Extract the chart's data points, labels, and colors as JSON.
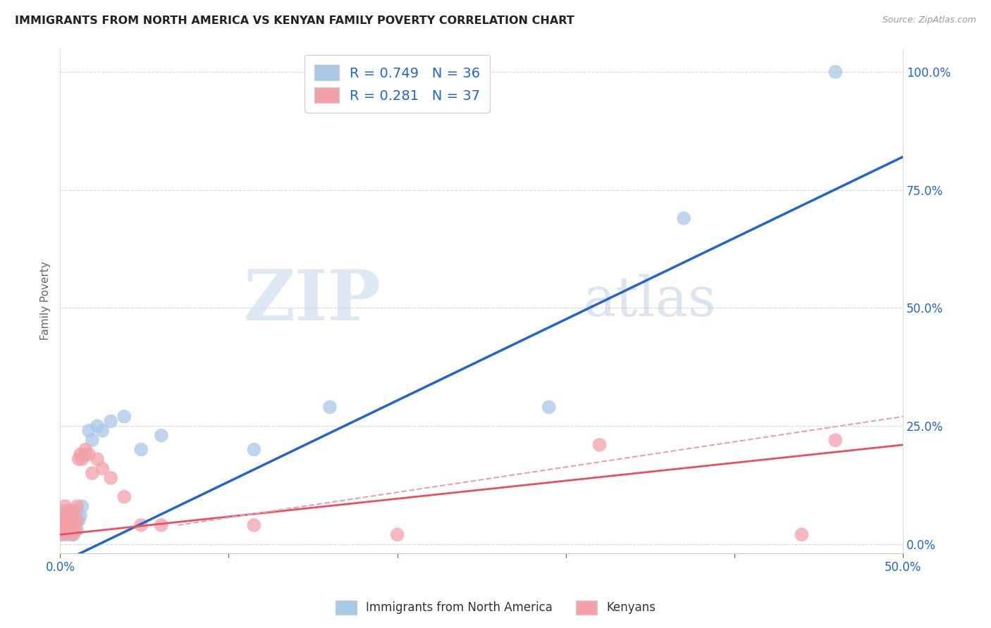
{
  "title": "IMMIGRANTS FROM NORTH AMERICA VS KENYAN FAMILY POVERTY CORRELATION CHART",
  "source": "Source: ZipAtlas.com",
  "ylabel": "Family Poverty",
  "xlim": [
    0.0,
    0.5
  ],
  "ylim": [
    0.0,
    1.05
  ],
  "x_ticks": [
    0.0,
    0.1,
    0.2,
    0.3,
    0.4,
    0.5
  ],
  "x_tick_labels": [
    "0.0%",
    "",
    "",
    "",
    "",
    "50.0%"
  ],
  "y_tick_labels_right": [
    "0.0%",
    "25.0%",
    "50.0%",
    "75.0%",
    "100.0%"
  ],
  "y_ticks_right": [
    0.0,
    0.25,
    0.5,
    0.75,
    1.0
  ],
  "R_blue": 0.749,
  "N_blue": 36,
  "R_pink": 0.281,
  "N_pink": 37,
  "blue_color": "#a8c8e8",
  "pink_color": "#f4a0a8",
  "blue_line_color": "#2266cc",
  "pink_line_color": "#e85060",
  "pink_line_dash_color": "#e8a0b0",
  "watermark_zip": "ZIP",
  "watermark_atlas": "atlas",
  "legend_label_blue": "Immigrants from North America",
  "legend_label_pink": "Kenyans",
  "blue_scatter_x": [
    0.001,
    0.002,
    0.002,
    0.003,
    0.003,
    0.003,
    0.004,
    0.004,
    0.005,
    0.005,
    0.006,
    0.006,
    0.007,
    0.007,
    0.008,
    0.008,
    0.009,
    0.01,
    0.01,
    0.011,
    0.012,
    0.013,
    0.015,
    0.017,
    0.019,
    0.022,
    0.025,
    0.03,
    0.038,
    0.048,
    0.06,
    0.115,
    0.16,
    0.29,
    0.37,
    0.46
  ],
  "blue_scatter_y": [
    0.02,
    0.04,
    0.06,
    0.03,
    0.05,
    0.07,
    0.02,
    0.05,
    0.03,
    0.06,
    0.04,
    0.07,
    0.03,
    0.06,
    0.02,
    0.05,
    0.04,
    0.03,
    0.07,
    0.05,
    0.06,
    0.08,
    0.19,
    0.24,
    0.22,
    0.25,
    0.24,
    0.26,
    0.27,
    0.2,
    0.23,
    0.2,
    0.29,
    0.29,
    0.69,
    1.0
  ],
  "pink_scatter_x": [
    0.001,
    0.001,
    0.002,
    0.002,
    0.003,
    0.003,
    0.003,
    0.004,
    0.004,
    0.005,
    0.005,
    0.006,
    0.006,
    0.007,
    0.007,
    0.008,
    0.008,
    0.009,
    0.01,
    0.01,
    0.011,
    0.012,
    0.013,
    0.015,
    0.017,
    0.019,
    0.022,
    0.025,
    0.03,
    0.038,
    0.048,
    0.06,
    0.115,
    0.2,
    0.32,
    0.44,
    0.46
  ],
  "pink_scatter_y": [
    0.02,
    0.05,
    0.03,
    0.06,
    0.04,
    0.06,
    0.08,
    0.03,
    0.05,
    0.04,
    0.07,
    0.03,
    0.06,
    0.02,
    0.05,
    0.04,
    0.07,
    0.03,
    0.05,
    0.08,
    0.18,
    0.19,
    0.18,
    0.2,
    0.19,
    0.15,
    0.18,
    0.16,
    0.14,
    0.1,
    0.04,
    0.04,
    0.04,
    0.02,
    0.21,
    0.02,
    0.22
  ],
  "background_color": "#ffffff",
  "grid_color": "#d0d8e8"
}
